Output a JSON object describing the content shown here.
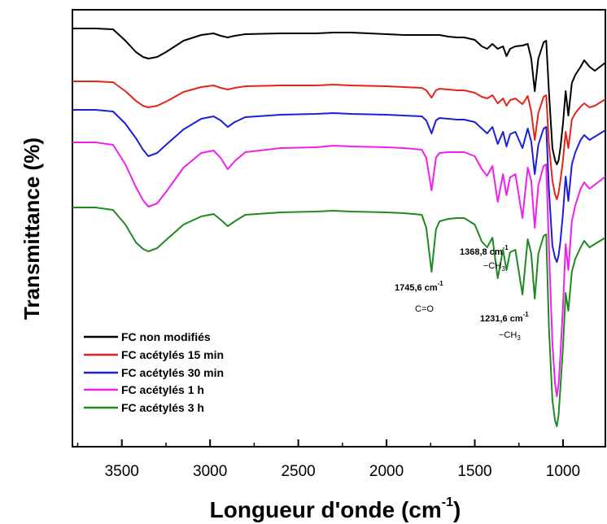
{
  "chart_data": {
    "type": "line",
    "xlabel": "Longueur d'onde (cm",
    "xlabel_sup": "-1",
    "xlabel_close": ")",
    "ylabel": "Transmittance (%)",
    "xlim": [
      3780,
      760
    ],
    "x_reversed": true,
    "y_ticks_shown": false,
    "grid": false,
    "legend_position": "bottom-left",
    "x_ticks": [
      3500,
      3000,
      2500,
      2000,
      1500,
      1000
    ],
    "series": [
      {
        "name": "FC non modifiés",
        "color": "#000000",
        "offset": 0,
        "points": [
          [
            3780,
            3
          ],
          [
            3650,
            3
          ],
          [
            3550,
            4
          ],
          [
            3480,
            18
          ],
          [
            3420,
            32
          ],
          [
            3380,
            38
          ],
          [
            3350,
            40
          ],
          [
            3300,
            38
          ],
          [
            3250,
            32
          ],
          [
            3150,
            18
          ],
          [
            3050,
            11
          ],
          [
            2980,
            9
          ],
          [
            2940,
            12
          ],
          [
            2900,
            14
          ],
          [
            2860,
            12
          ],
          [
            2800,
            10
          ],
          [
            2600,
            9
          ],
          [
            2400,
            9
          ],
          [
            2300,
            8
          ],
          [
            2200,
            8
          ],
          [
            2000,
            10
          ],
          [
            1900,
            11
          ],
          [
            1800,
            11
          ],
          [
            1700,
            11
          ],
          [
            1650,
            13
          ],
          [
            1600,
            14
          ],
          [
            1560,
            14
          ],
          [
            1500,
            17
          ],
          [
            1460,
            25
          ],
          [
            1430,
            28
          ],
          [
            1400,
            22
          ],
          [
            1370,
            28
          ],
          [
            1340,
            25
          ],
          [
            1320,
            37
          ],
          [
            1300,
            28
          ],
          [
            1270,
            25
          ],
          [
            1230,
            24
          ],
          [
            1200,
            22
          ],
          [
            1180,
            40
          ],
          [
            1160,
            80
          ],
          [
            1140,
            40
          ],
          [
            1110,
            20
          ],
          [
            1095,
            18
          ],
          [
            1080,
            80
          ],
          [
            1060,
            150
          ],
          [
            1045,
            165
          ],
          [
            1035,
            170
          ],
          [
            1025,
            165
          ],
          [
            1015,
            150
          ],
          [
            1000,
            120
          ],
          [
            985,
            80
          ],
          [
            970,
            110
          ],
          [
            950,
            70
          ],
          [
            930,
            60
          ],
          [
            900,
            50
          ],
          [
            880,
            42
          ],
          [
            850,
            50
          ],
          [
            820,
            55
          ],
          [
            760,
            45
          ]
        ]
      },
      {
        "name": "FC acétylés 15 min",
        "color": "#e3251b",
        "offset": 65,
        "points": [
          [
            3780,
            3
          ],
          [
            3650,
            3
          ],
          [
            3550,
            4
          ],
          [
            3480,
            15
          ],
          [
            3420,
            27
          ],
          [
            3380,
            33
          ],
          [
            3350,
            35
          ],
          [
            3300,
            33
          ],
          [
            3250,
            28
          ],
          [
            3150,
            16
          ],
          [
            3050,
            10
          ],
          [
            2980,
            8
          ],
          [
            2940,
            11
          ],
          [
            2900,
            13
          ],
          [
            2860,
            11
          ],
          [
            2800,
            9
          ],
          [
            2600,
            8
          ],
          [
            2400,
            8
          ],
          [
            2300,
            7
          ],
          [
            2200,
            8
          ],
          [
            2000,
            9
          ],
          [
            1900,
            10
          ],
          [
            1800,
            11
          ],
          [
            1775,
            14
          ],
          [
            1745,
            23
          ],
          [
            1720,
            14
          ],
          [
            1700,
            12
          ],
          [
            1650,
            13
          ],
          [
            1600,
            14
          ],
          [
            1560,
            14
          ],
          [
            1500,
            17
          ],
          [
            1460,
            22
          ],
          [
            1430,
            24
          ],
          [
            1400,
            20
          ],
          [
            1370,
            30
          ],
          [
            1340,
            24
          ],
          [
            1320,
            33
          ],
          [
            1300,
            26
          ],
          [
            1270,
            24
          ],
          [
            1230,
            31
          ],
          [
            1200,
            21
          ],
          [
            1180,
            40
          ],
          [
            1160,
            75
          ],
          [
            1140,
            42
          ],
          [
            1110,
            22
          ],
          [
            1095,
            20
          ],
          [
            1080,
            80
          ],
          [
            1060,
            125
          ],
          [
            1045,
            142
          ],
          [
            1035,
            148
          ],
          [
            1025,
            140
          ],
          [
            1015,
            125
          ],
          [
            1000,
            100
          ],
          [
            985,
            65
          ],
          [
            970,
            85
          ],
          [
            950,
            50
          ],
          [
            930,
            42
          ],
          [
            900,
            34
          ],
          [
            880,
            30
          ],
          [
            850,
            35
          ],
          [
            820,
            33
          ],
          [
            760,
            25
          ]
        ]
      },
      {
        "name": "FC acétylés 30 min",
        "color": "#1b1fd8",
        "offset": 100,
        "points": [
          [
            3780,
            3
          ],
          [
            3650,
            3
          ],
          [
            3550,
            5
          ],
          [
            3480,
            20
          ],
          [
            3420,
            38
          ],
          [
            3380,
            52
          ],
          [
            3350,
            60
          ],
          [
            3300,
            56
          ],
          [
            3250,
            46
          ],
          [
            3150,
            27
          ],
          [
            3050,
            14
          ],
          [
            2980,
            11
          ],
          [
            2940,
            16
          ],
          [
            2900,
            24
          ],
          [
            2860,
            18
          ],
          [
            2800,
            12
          ],
          [
            2600,
            9
          ],
          [
            2400,
            8
          ],
          [
            2300,
            7
          ],
          [
            2200,
            8
          ],
          [
            2000,
            9
          ],
          [
            1900,
            10
          ],
          [
            1800,
            11
          ],
          [
            1775,
            16
          ],
          [
            1745,
            32
          ],
          [
            1720,
            16
          ],
          [
            1700,
            13
          ],
          [
            1650,
            14
          ],
          [
            1600,
            15
          ],
          [
            1560,
            15
          ],
          [
            1500,
            18
          ],
          [
            1460,
            26
          ],
          [
            1430,
            32
          ],
          [
            1400,
            24
          ],
          [
            1370,
            45
          ],
          [
            1340,
            30
          ],
          [
            1320,
            48
          ],
          [
            1300,
            33
          ],
          [
            1270,
            30
          ],
          [
            1230,
            50
          ],
          [
            1200,
            26
          ],
          [
            1180,
            42
          ],
          [
            1160,
            82
          ],
          [
            1140,
            46
          ],
          [
            1110,
            26
          ],
          [
            1095,
            24
          ],
          [
            1080,
            100
          ],
          [
            1060,
            170
          ],
          [
            1045,
            185
          ],
          [
            1035,
            190
          ],
          [
            1025,
            182
          ],
          [
            1015,
            165
          ],
          [
            1000,
            130
          ],
          [
            985,
            85
          ],
          [
            970,
            115
          ],
          [
            950,
            70
          ],
          [
            930,
            55
          ],
          [
            900,
            40
          ],
          [
            880,
            34
          ],
          [
            850,
            40
          ],
          [
            820,
            36
          ],
          [
            760,
            28
          ]
        ]
      },
      {
        "name": "FC acétylés 1 h",
        "color": "#f11fed",
        "offset": 140,
        "points": [
          [
            3780,
            3
          ],
          [
            3650,
            3
          ],
          [
            3550,
            6
          ],
          [
            3480,
            30
          ],
          [
            3420,
            58
          ],
          [
            3380,
            74
          ],
          [
            3350,
            82
          ],
          [
            3300,
            78
          ],
          [
            3250,
            64
          ],
          [
            3150,
            34
          ],
          [
            3050,
            16
          ],
          [
            2980,
            13
          ],
          [
            2940,
            22
          ],
          [
            2900,
            36
          ],
          [
            2860,
            26
          ],
          [
            2800,
            15
          ],
          [
            2600,
            10
          ],
          [
            2400,
            9
          ],
          [
            2300,
            7
          ],
          [
            2200,
            8
          ],
          [
            2000,
            9
          ],
          [
            1900,
            10
          ],
          [
            1800,
            12
          ],
          [
            1775,
            22
          ],
          [
            1745,
            62
          ],
          [
            1720,
            22
          ],
          [
            1700,
            16
          ],
          [
            1650,
            15
          ],
          [
            1600,
            15
          ],
          [
            1560,
            15
          ],
          [
            1500,
            20
          ],
          [
            1460,
            36
          ],
          [
            1430,
            44
          ],
          [
            1400,
            32
          ],
          [
            1370,
            76
          ],
          [
            1340,
            42
          ],
          [
            1320,
            68
          ],
          [
            1300,
            46
          ],
          [
            1270,
            42
          ],
          [
            1230,
            96
          ],
          [
            1200,
            34
          ],
          [
            1180,
            50
          ],
          [
            1160,
            108
          ],
          [
            1140,
            56
          ],
          [
            1110,
            32
          ],
          [
            1095,
            30
          ],
          [
            1080,
            130
          ],
          [
            1060,
            250
          ],
          [
            1045,
            300
          ],
          [
            1035,
            315
          ],
          [
            1025,
            300
          ],
          [
            1015,
            265
          ],
          [
            1000,
            205
          ],
          [
            985,
            128
          ],
          [
            970,
            160
          ],
          [
            950,
            100
          ],
          [
            930,
            80
          ],
          [
            900,
            60
          ],
          [
            880,
            52
          ],
          [
            850,
            60
          ],
          [
            820,
            55
          ],
          [
            760,
            45
          ]
        ]
      },
      {
        "name": "FC acétylés 3 h",
        "color": "#1e8a21",
        "offset": 220,
        "points": [
          [
            3780,
            3
          ],
          [
            3650,
            3
          ],
          [
            3550,
            6
          ],
          [
            3480,
            24
          ],
          [
            3420,
            46
          ],
          [
            3380,
            54
          ],
          [
            3350,
            57
          ],
          [
            3300,
            53
          ],
          [
            3250,
            43
          ],
          [
            3150,
            24
          ],
          [
            3050,
            14
          ],
          [
            2980,
            11
          ],
          [
            2940,
            18
          ],
          [
            2900,
            26
          ],
          [
            2860,
            20
          ],
          [
            2800,
            12
          ],
          [
            2600,
            9
          ],
          [
            2400,
            8
          ],
          [
            2300,
            7
          ],
          [
            2200,
            8
          ],
          [
            2000,
            9
          ],
          [
            1900,
            10
          ],
          [
            1800,
            12
          ],
          [
            1775,
            28
          ],
          [
            1745,
            82
          ],
          [
            1720,
            30
          ],
          [
            1700,
            20
          ],
          [
            1650,
            17
          ],
          [
            1600,
            16
          ],
          [
            1560,
            16
          ],
          [
            1500,
            24
          ],
          [
            1460,
            45
          ],
          [
            1430,
            52
          ],
          [
            1400,
            40
          ],
          [
            1370,
            90
          ],
          [
            1340,
            55
          ],
          [
            1320,
            80
          ],
          [
            1300,
            58
          ],
          [
            1270,
            55
          ],
          [
            1230,
            110
          ],
          [
            1200,
            42
          ],
          [
            1180,
            60
          ],
          [
            1160,
            115
          ],
          [
            1140,
            60
          ],
          [
            1110,
            38
          ],
          [
            1095,
            36
          ],
          [
            1080,
            150
          ],
          [
            1060,
            240
          ],
          [
            1045,
            265
          ],
          [
            1035,
            272
          ],
          [
            1025,
            258
          ],
          [
            1015,
            225
          ],
          [
            1000,
            175
          ],
          [
            985,
            108
          ],
          [
            970,
            130
          ],
          [
            950,
            82
          ],
          [
            930,
            66
          ],
          [
            900,
            52
          ],
          [
            880,
            44
          ],
          [
            850,
            52
          ],
          [
            820,
            48
          ],
          [
            760,
            40
          ]
        ]
      }
    ],
    "annotations": [
      {
        "id": "c-o",
        "value": "1745,6 cm",
        "sup": "-1",
        "group": "C=O"
      },
      {
        "id": "ch3-a",
        "value": "1368,8 cm",
        "sup": "-1",
        "group": "−CH",
        "sub": "3"
      },
      {
        "id": "ch3-b",
        "value": "1231,6 cm",
        "sup": "-1",
        "group": "−CH",
        "sub": "3"
      }
    ]
  }
}
